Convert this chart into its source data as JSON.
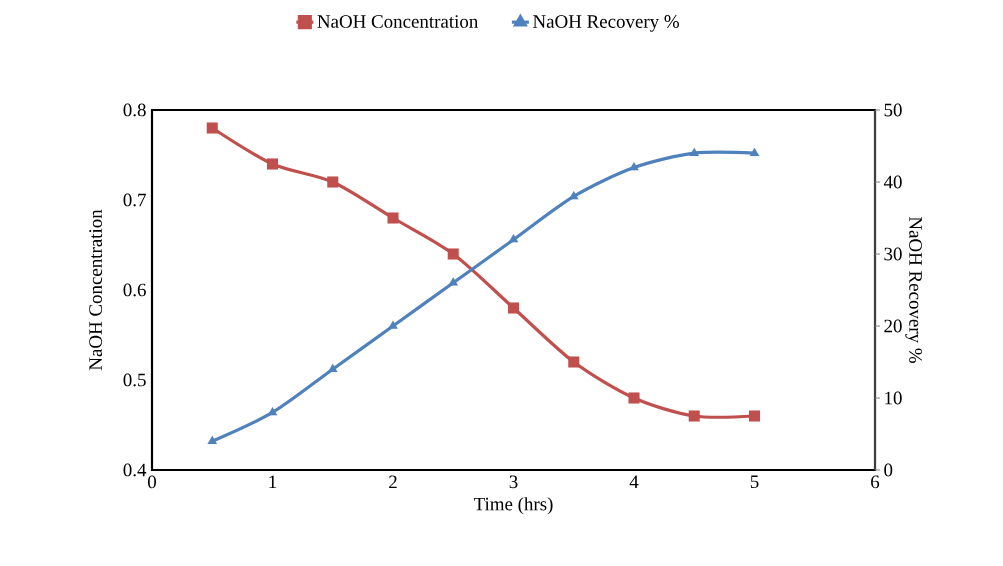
{
  "chart_data": {
    "type": "line",
    "xlabel": "Time (hrs)",
    "ylabel": "NaOH  Concentration",
    "y2label": "NaOH Recovery %",
    "x": [
      0.5,
      1,
      1.5,
      2,
      2.5,
      3,
      3.5,
      4,
      4.5,
      5
    ],
    "series": [
      {
        "name": "NaOH Concentration",
        "color": "#c0504d",
        "marker": "square",
        "values": [
          0.78,
          0.74,
          0.72,
          0.68,
          0.64,
          0.58,
          0.52,
          0.48,
          0.46,
          0.46
        ]
      },
      {
        "name": "NaOH Recovery %",
        "color": "#4f81bd",
        "marker": "triangle",
        "axis": "y2",
        "values": [
          4,
          8,
          14,
          20,
          26,
          32,
          38,
          42,
          44,
          44
        ]
      }
    ],
    "xlim": [
      0,
      6
    ],
    "xticks": [
      0,
      1,
      2,
      3,
      4,
      5,
      6
    ],
    "ylim": [
      0.4,
      0.8
    ],
    "yticks": [
      0.4,
      0.5,
      0.6,
      0.7,
      0.8
    ],
    "y2lim": [
      0,
      50
    ],
    "y2ticks": [
      0,
      10,
      20,
      30,
      40,
      50
    ],
    "legend": "top"
  }
}
